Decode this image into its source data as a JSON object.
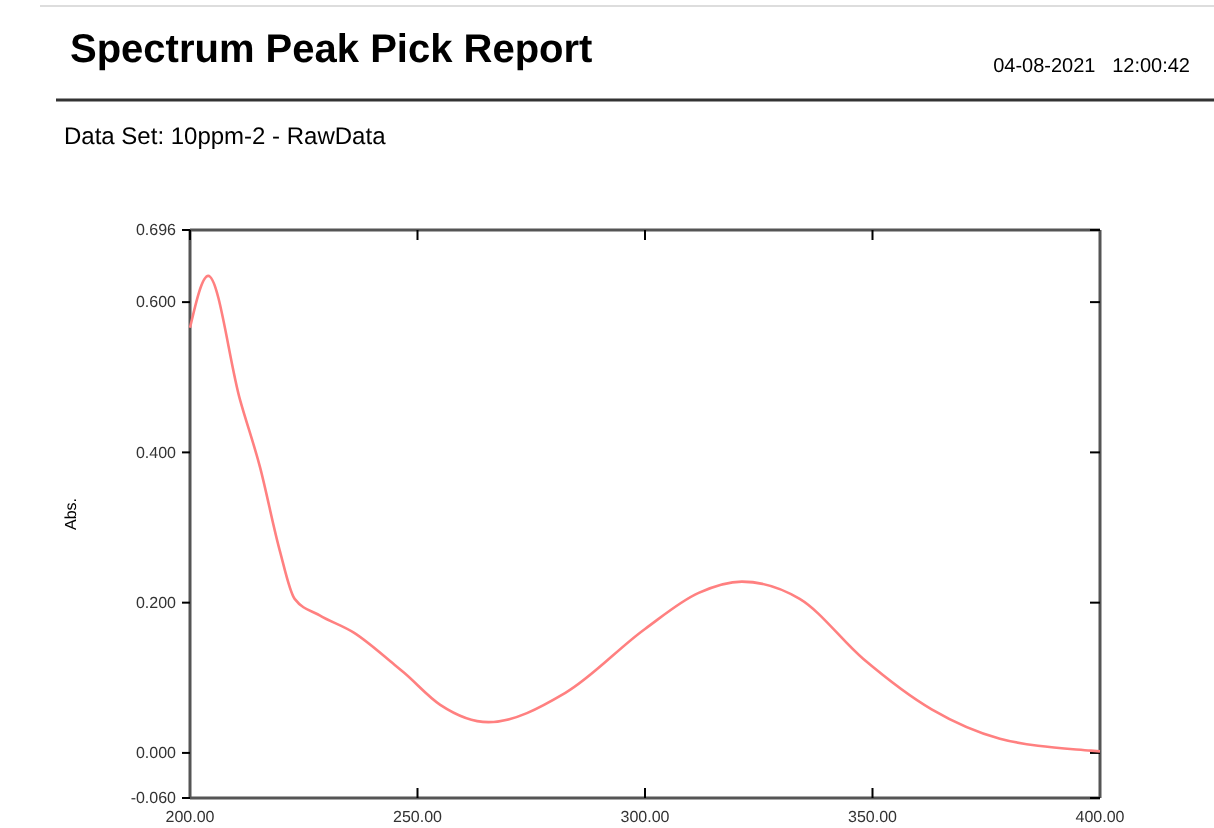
{
  "chart_data": {
    "type": "line",
    "title": "Spectrum Peak Pick Report",
    "subtitle": "Data Set: 10ppm-2 - RawData",
    "annotations": [
      "04-08-2021   12:00:42"
    ],
    "ylabel": "Abs.",
    "x": [
      200,
      204,
      211,
      215.4,
      219.7,
      223,
      228.5,
      236,
      245,
      247,
      255,
      265.6,
      282.5,
      300,
      311.8,
      321.3,
      334,
      348,
      363,
      378,
      398,
      400
    ],
    "series": [
      {
        "color": "#ff8080",
        "values": [
          0.566,
          0.635,
          0.47,
          0.38,
          0.27,
          0.205,
          0.183,
          0.16,
          0.117,
          0.107,
          0.064,
          0.041,
          0.08,
          0.165,
          0.213,
          0.228,
          0.205,
          0.125,
          0.058,
          0.019,
          0.003,
          0.002
        ]
      }
    ],
    "xlim": [
      200,
      400
    ],
    "ylim": [
      -0.06,
      0.696
    ],
    "xticks": [
      {
        "value": 200,
        "label": "200.00"
      },
      {
        "value": 250,
        "label": "250.00"
      },
      {
        "value": 300,
        "label": "300.00"
      },
      {
        "value": 350,
        "label": "350.00"
      },
      {
        "value": 400,
        "label": "400.00"
      }
    ],
    "yticks": [
      {
        "value": -0.06,
        "label": "-0.060"
      },
      {
        "value": 0,
        "label": "0.000"
      },
      {
        "value": 0.2,
        "label": "0.200"
      },
      {
        "value": 0.4,
        "label": "0.400"
      },
      {
        "value": 0.6,
        "label": "0.600"
      },
      {
        "value": 0.696,
        "label": "0.696"
      }
    ],
    "marker": "none",
    "line_style": "solid"
  }
}
